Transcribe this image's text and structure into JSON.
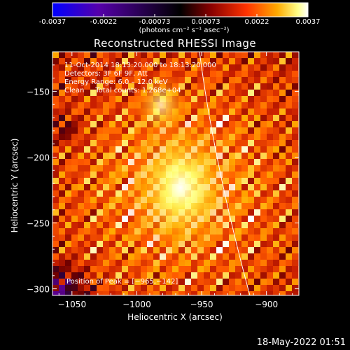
{
  "chart_data": {
    "type": "heatmap",
    "title": "Reconstructed RHESSI Image",
    "xlabel": "Heliocentric X (arcsec)",
    "ylabel": "Heliocentric Y (arcsec)",
    "xlim": [
      -1065,
      -875
    ],
    "ylim": [
      -305,
      -120
    ],
    "x_ticks": [
      -1050,
      -1000,
      -950,
      -900
    ],
    "y_ticks": [
      -150,
      -200,
      -250,
      -300
    ],
    "x_tick_labels": [
      "−1050",
      "−1000",
      "−950",
      "−900"
    ],
    "y_tick_labels": [
      "−150",
      "−200",
      "−250",
      "−300"
    ],
    "peak": {
      "x": -965,
      "y": -142
    },
    "colorbar": {
      "ticks": [
        "-0.0037",
        "-0.0022",
        "-0.00073",
        "0.00073",
        "0.0022",
        "0.0037"
      ],
      "range": [
        -0.0037,
        0.0037
      ],
      "unit_label": "(photons cm⁻² s⁻¹ asec⁻²)",
      "colormap": [
        "#0000ff",
        "#5500aa",
        "#000000",
        "#880000",
        "#ff3300",
        "#ffaa00",
        "#ffff88",
        "#ffffff"
      ]
    }
  },
  "info": {
    "time_range": "11-Oct-2014 18:13:20.000 to 18:13:20.000",
    "detectors": "Detectors: 3F 6F 9F, Att",
    "energy": "Energy Range: 6.0 – 12.0 keV",
    "clean": "Clean     Total counts: 1.268e+04",
    "peak_label": "Position of Peak = [−965,−142]"
  },
  "footer": {
    "date": "18-May-2022 01:51"
  }
}
